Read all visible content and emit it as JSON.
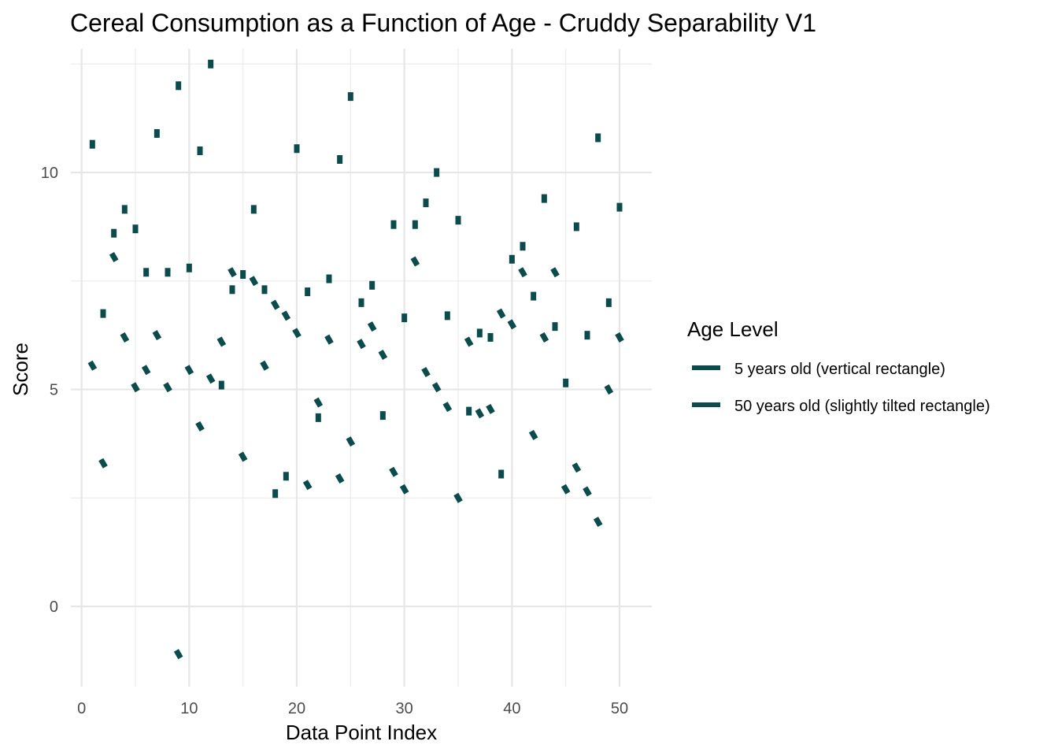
{
  "chart_data": {
    "type": "scatter",
    "title": "Cereal Consumption as a Function of Age - Cruddy Separability V1",
    "xlabel": "Data Point Index",
    "ylabel": "Score",
    "xlim": [
      -1,
      53
    ],
    "ylim": [
      -1.85,
      12.85
    ],
    "x_ticks": [
      0,
      10,
      20,
      30,
      40,
      50
    ],
    "y_ticks": [
      0,
      5,
      10
    ],
    "grid": true,
    "legend_position": "right",
    "legend": {
      "title": "Age Level",
      "entries": [
        "5 years old (vertical rectangle)",
        "50 years old (slightly tilted rectangle)"
      ]
    },
    "marker_color": "#0b4b4b",
    "series": [
      {
        "name": "5 years old (vertical rectangle)",
        "marker": "vertical-rectangle",
        "x": [
          1,
          2,
          3,
          4,
          5,
          6,
          7,
          8,
          9,
          10,
          11,
          12,
          13,
          14,
          15,
          16,
          17,
          18,
          19,
          20,
          21,
          22,
          23,
          24,
          25,
          26,
          27,
          28,
          29,
          30,
          31,
          32,
          33,
          34,
          35,
          36,
          37,
          38,
          39,
          40,
          41,
          42,
          43,
          44,
          45,
          46,
          47,
          48,
          49,
          50
        ],
        "y": [
          10.65,
          6.75,
          8.6,
          9.15,
          8.7,
          7.7,
          10.9,
          7.7,
          12.0,
          7.8,
          10.5,
          12.5,
          5.1,
          7.3,
          7.65,
          9.15,
          7.3,
          2.6,
          3.0,
          10.55,
          7.25,
          4.35,
          7.55,
          10.3,
          11.75,
          7.0,
          7.4,
          4.4,
          8.8,
          6.65,
          8.8,
          9.3,
          10.0,
          6.7,
          8.9,
          4.5,
          6.3,
          6.2,
          3.05,
          8.0,
          8.3,
          7.15,
          9.4,
          6.45,
          5.15,
          8.75,
          6.25,
          10.8,
          7.0,
          9.2
        ]
      },
      {
        "name": "50 years old (slightly tilted rectangle)",
        "marker": "tilted-rectangle",
        "x": [
          1,
          2,
          3,
          4,
          5,
          6,
          7,
          8,
          9,
          10,
          11,
          12,
          13,
          14,
          15,
          16,
          17,
          18,
          19,
          20,
          21,
          22,
          23,
          24,
          25,
          26,
          27,
          28,
          29,
          30,
          31,
          32,
          33,
          34,
          35,
          36,
          37,
          38,
          39,
          40,
          41,
          42,
          43,
          44,
          45,
          46,
          47,
          48,
          49,
          50
        ],
        "y": [
          5.55,
          3.3,
          8.05,
          6.2,
          5.05,
          5.45,
          6.25,
          5.05,
          -1.1,
          5.45,
          4.15,
          5.25,
          6.1,
          7.7,
          3.45,
          7.5,
          5.55,
          6.95,
          6.7,
          6.3,
          2.8,
          4.7,
          6.15,
          2.95,
          3.8,
          6.05,
          6.45,
          5.8,
          3.1,
          2.7,
          7.95,
          5.4,
          5.05,
          4.6,
          2.5,
          6.1,
          4.45,
          4.55,
          6.75,
          6.5,
          7.7,
          3.95,
          6.2,
          7.7,
          2.7,
          3.2,
          2.65,
          1.95,
          5.0,
          6.2
        ]
      }
    ]
  }
}
